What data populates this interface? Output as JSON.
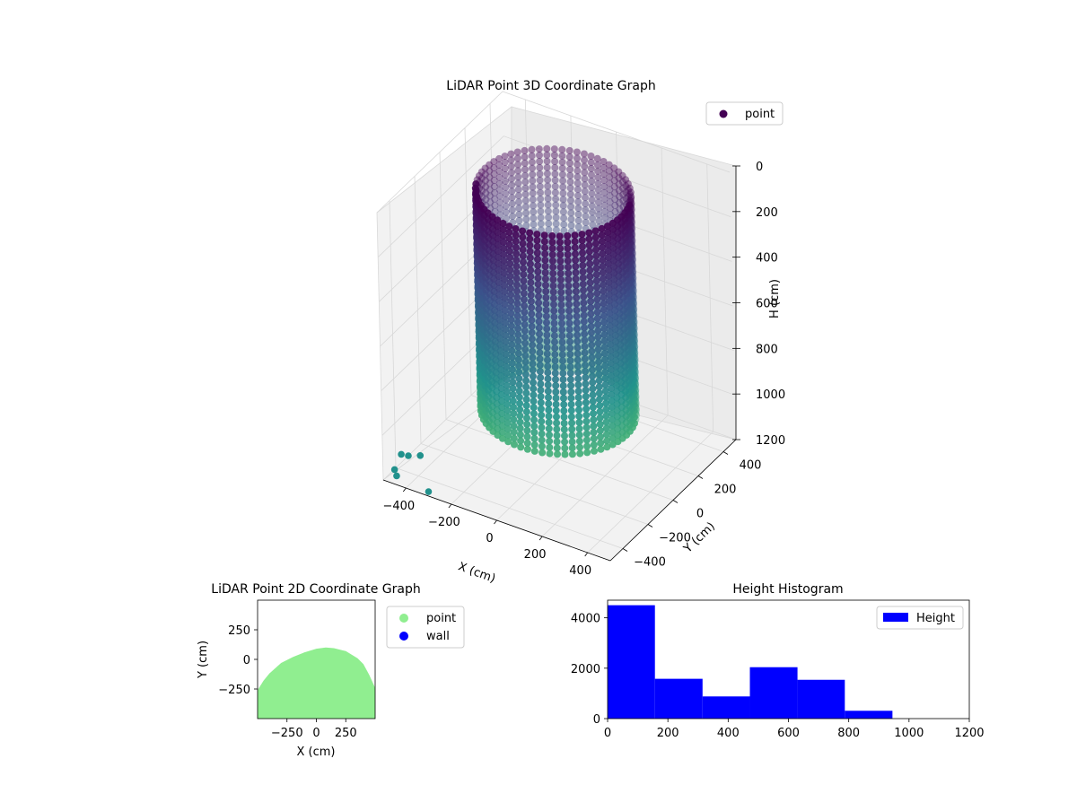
{
  "chart_data": [
    {
      "type": "scatter3d",
      "title": "LiDAR Point 3D Coordinate Graph",
      "xlabel": "X (cm)",
      "ylabel": "Y (cm)",
      "zlabel": "H (cm)",
      "x_ticks": [
        -400,
        -200,
        0,
        200,
        400
      ],
      "y_ticks": [
        -400,
        -200,
        0,
        200,
        400
      ],
      "z_ticks": [
        0,
        200,
        400,
        600,
        800,
        1000,
        1200
      ],
      "xlim": [
        -500,
        500
      ],
      "ylim": [
        -500,
        500
      ],
      "zlim": [
        0,
        1200
      ],
      "z_inverted": true,
      "grid": true,
      "legend": {
        "placement": "top-right",
        "entries": [
          "point"
        ]
      },
      "colormap": [
        "#440154",
        "#3b528b",
        "#21918c",
        "#5ec962"
      ],
      "point_color": "#440154",
      "cylinder": {
        "center_x": 0,
        "center_y": 0,
        "radius": 300,
        "h_top": 0,
        "h_bottom": 1000
      },
      "outliers": [
        {
          "x": -460,
          "y": -480,
          "h": 1150
        },
        {
          "x": -440,
          "y": -500,
          "h": 1160
        },
        {
          "x": -300,
          "y": -500,
          "h": 1180
        },
        {
          "x": -520,
          "y": -320,
          "h": 1190
        },
        {
          "x": -500,
          "y": -300,
          "h": 1200
        },
        {
          "x": -470,
          "y": -260,
          "h": 1210
        }
      ]
    },
    {
      "type": "scatter",
      "title": "LiDAR Point 2D Coordinate Graph",
      "xlabel": "X (cm)",
      "ylabel": "Y (cm)",
      "xlim": [
        -500,
        500
      ],
      "ylim": [
        -500,
        500
      ],
      "x_ticks": [
        -250,
        0,
        250
      ],
      "y_ticks": [
        -250,
        0,
        250
      ],
      "tick_labels_x": [
        "−250",
        "0",
        "250"
      ],
      "tick_labels_y": [
        "−250",
        "0",
        "250"
      ],
      "legend": {
        "placement": "right-outside",
        "entries": [
          {
            "name": "point",
            "color": "#90ee90"
          },
          {
            "name": "wall",
            "color": "#0000ff"
          }
        ]
      },
      "filled_region": {
        "x": [
          -500,
          -450,
          -400,
          -300,
          -200,
          -100,
          0,
          80,
          150,
          250,
          350,
          400,
          450,
          500
        ],
        "y_top": [
          -260,
          -180,
          -120,
          -30,
          20,
          60,
          90,
          100,
          95,
          70,
          10,
          -40,
          -130,
          -240
        ]
      }
    },
    {
      "type": "bar",
      "title": "Height Histogram",
      "xlabel": "",
      "ylabel": "",
      "xlim": [
        0,
        1200
      ],
      "ylim": [
        0,
        4700
      ],
      "x_ticks": [
        0,
        200,
        400,
        600,
        800,
        1000,
        1200
      ],
      "y_ticks": [
        0,
        2000,
        4000
      ],
      "bin_edges": [
        0,
        157,
        315,
        472,
        630,
        787,
        945
      ],
      "values": [
        4500,
        1580,
        880,
        2040,
        1540,
        310
      ],
      "color": "#0000ff",
      "legend": {
        "placement": "top-right",
        "entries": [
          "Height"
        ]
      }
    }
  ]
}
